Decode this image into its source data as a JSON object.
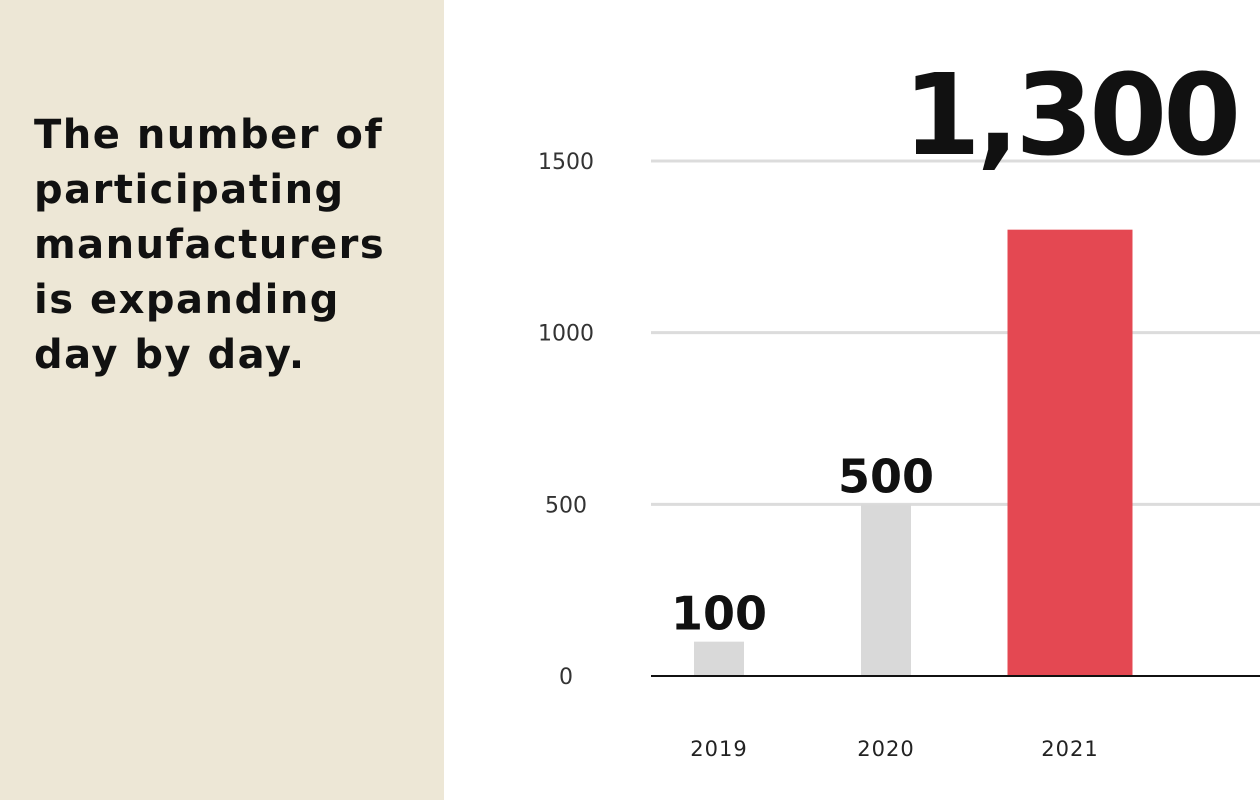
{
  "headline": "The number of participating manufacturers is expanding day by day.",
  "colors": {
    "panel_bg": "#ede7d6",
    "bar_default": "#d9d9d9",
    "bar_highlight": "#e44852",
    "gridline": "#dcdcdc",
    "baseline": "#111111",
    "text": "#111111"
  },
  "chart_data": {
    "type": "bar",
    "categories": [
      "2019",
      "2020",
      "2021"
    ],
    "values": [
      100,
      500,
      1300
    ],
    "value_labels": [
      "100",
      "500",
      "1,300"
    ],
    "highlight_index": 2,
    "ylim": [
      0,
      1500
    ],
    "yticks": [
      {
        "value": 0,
        "label": "0"
      },
      {
        "value": 500,
        "label": "500"
      },
      {
        "value": 1000,
        "label": "1000"
      },
      {
        "value": 1500,
        "label": "1500"
      }
    ],
    "grid": true,
    "title": "",
    "xlabel": "",
    "ylabel": ""
  }
}
